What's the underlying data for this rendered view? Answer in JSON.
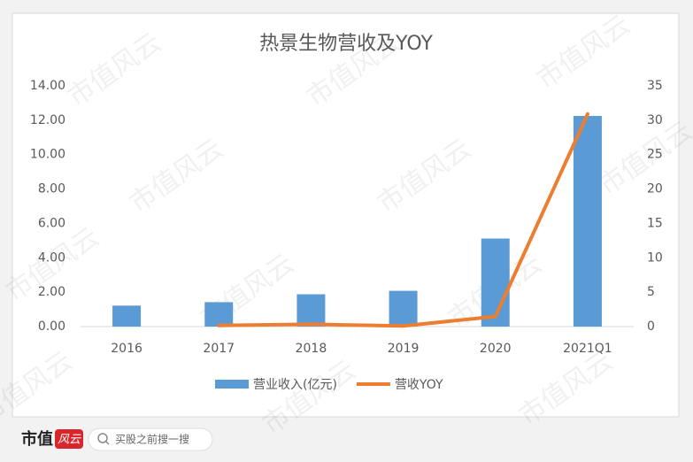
{
  "chart_data": {
    "type": "bar-line",
    "title": "热景生物营收及YOY",
    "categories": [
      "2016",
      "2017",
      "2018",
      "2019",
      "2020",
      "2021Q1"
    ],
    "series": [
      {
        "name": "营业收入(亿元)",
        "color": "#5b9bd5",
        "type": "bar",
        "values": [
          1.22,
          1.42,
          1.88,
          2.08,
          5.12,
          12.25
        ]
      },
      {
        "name": "营收YOY",
        "color": "#ed7d31",
        "type": "line",
        "axis": "y2",
        "values": [
          null,
          0.16,
          0.33,
          0.1,
          1.46,
          30.9
        ]
      }
    ],
    "ylim": [
      0,
      14
    ],
    "yticks": [
      {
        "value": 0,
        "label": "0.00"
      },
      {
        "value": 2,
        "label": "2.00"
      },
      {
        "value": 4,
        "label": "4.00"
      },
      {
        "value": 6,
        "label": "6.00"
      },
      {
        "value": 8,
        "label": "8.00"
      },
      {
        "value": 10,
        "label": "10.00"
      },
      {
        "value": 12,
        "label": "12.00"
      },
      {
        "value": 14,
        "label": "14.00"
      }
    ],
    "y2lim": [
      0,
      35
    ],
    "y2ticks": [
      0,
      5,
      10,
      15,
      20,
      25,
      30,
      35
    ],
    "legend": "bottom"
  },
  "watermark": "市值风云",
  "footer": {
    "logo": "市值",
    "logo_mark": "风云",
    "search": "买股之前搜一搜"
  }
}
